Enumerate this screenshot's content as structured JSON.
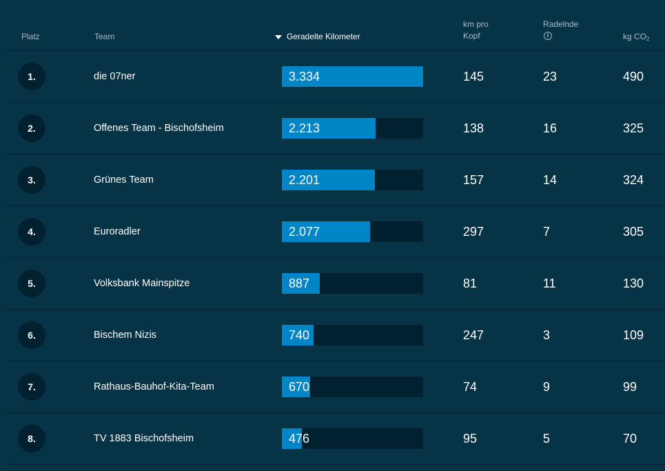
{
  "header": {
    "platz": "Platz",
    "team": "Team",
    "km": "Geradelte Kilometer",
    "km_pro_kopf_line1": "km pro",
    "km_pro_kopf_line2": "Kopf",
    "radelnde": "Radelnde",
    "info_glyph": "i",
    "co2_prefix": "kg CO",
    "co2_sub": "2",
    "sort_icon": "sort-desc-icon"
  },
  "colors": {
    "background": "#073347",
    "bar_fill": "#0085c6",
    "bar_track": "#022130",
    "rank_circle": "#022130"
  },
  "rows": [
    {
      "rank": "1.",
      "team": "die 07ner",
      "km": "3.334",
      "km_value": 3334,
      "km_pro_kopf": "145",
      "radelnde": "23",
      "co2": "490"
    },
    {
      "rank": "2.",
      "team": "Offenes Team - Bischofsheim",
      "km": "2.213",
      "km_value": 2213,
      "km_pro_kopf": "138",
      "radelnde": "16",
      "co2": "325"
    },
    {
      "rank": "3.",
      "team": "Grünes Team",
      "km": "2.201",
      "km_value": 2201,
      "km_pro_kopf": "157",
      "radelnde": "14",
      "co2": "324"
    },
    {
      "rank": "4.",
      "team": "Euroradler",
      "km": "2.077",
      "km_value": 2077,
      "km_pro_kopf": "297",
      "radelnde": "7",
      "co2": "305"
    },
    {
      "rank": "5.",
      "team": "Volksbank Mainspitze",
      "km": "887",
      "km_value": 887,
      "km_pro_kopf": "81",
      "radelnde": "11",
      "co2": "130"
    },
    {
      "rank": "6.",
      "team": "Bischem Nizis",
      "km": "740",
      "km_value": 740,
      "km_pro_kopf": "247",
      "radelnde": "3",
      "co2": "109"
    },
    {
      "rank": "7.",
      "team": "Rathaus-Bauhof-Kita-Team",
      "km": "670",
      "km_value": 670,
      "km_pro_kopf": "74",
      "radelnde": "9",
      "co2": "99"
    },
    {
      "rank": "8.",
      "team": "TV 1883 Bischofsheim",
      "km": "476",
      "km_value": 476,
      "km_pro_kopf": "95",
      "radelnde": "5",
      "co2": "70"
    }
  ]
}
